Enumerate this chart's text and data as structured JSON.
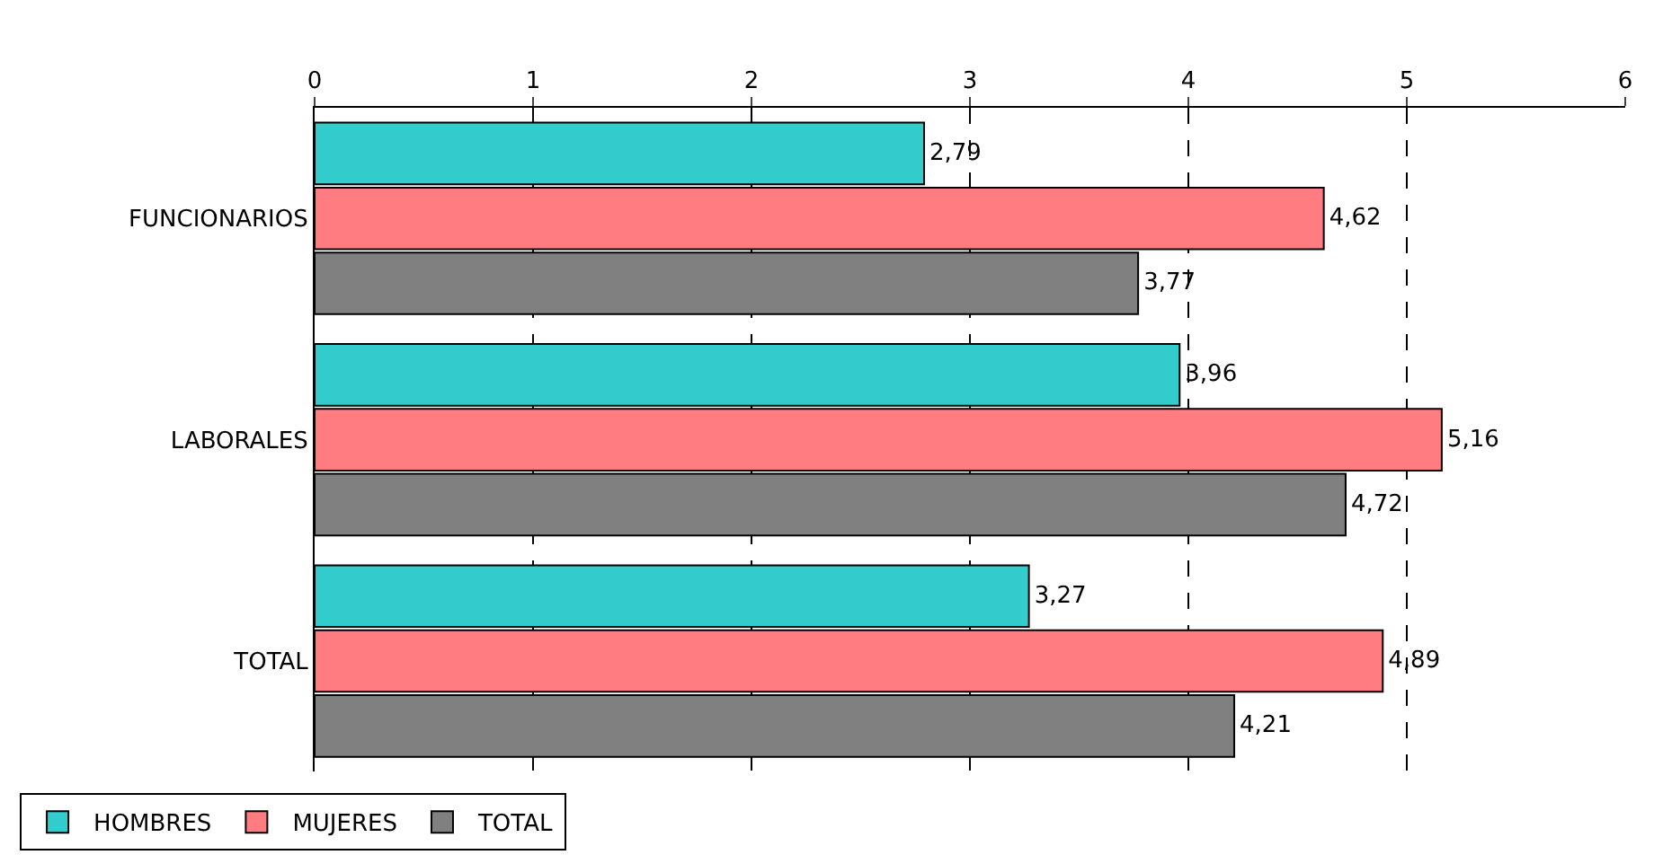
{
  "chart_data": {
    "type": "bar",
    "orientation": "horizontal",
    "categories": [
      "FUNCIONARIOS",
      "LABORALES",
      "TOTAL"
    ],
    "series": [
      {
        "name": "HOMBRES",
        "color": "#33cccc",
        "values": [
          2.79,
          3.96,
          3.27
        ],
        "value_labels": [
          "2,79",
          "3,96",
          "3,27"
        ]
      },
      {
        "name": "MUJERES",
        "color": "#ff7c80",
        "values": [
          4.62,
          5.16,
          4.89
        ],
        "value_labels": [
          "4,62",
          "5,16",
          "4,89"
        ]
      },
      {
        "name": "TOTAL",
        "color": "#808080",
        "values": [
          3.77,
          4.72,
          4.21
        ],
        "value_labels": [
          "3,77",
          "4,72",
          "4,21"
        ]
      }
    ],
    "xlim": [
      0,
      6
    ],
    "xticks": [
      0,
      1,
      2,
      3,
      4,
      5,
      6
    ],
    "grid": "x",
    "legend": "bottom left"
  }
}
